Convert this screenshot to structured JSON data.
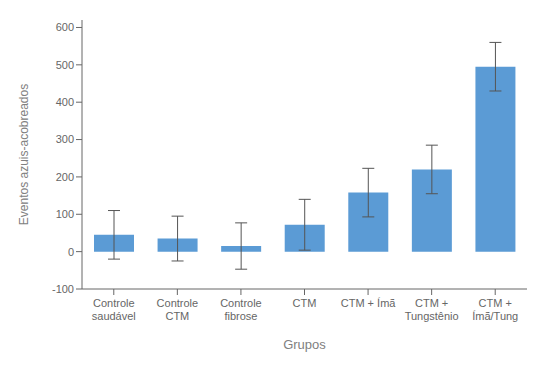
{
  "chart_data": {
    "type": "bar",
    "categories": [
      "Controle\nsaudável",
      "Controle\nCTM",
      "Controle\nfibrose",
      "CTM",
      "CTM + Ímã",
      "CTM +\nTungstênio",
      "CTM +\nÍmã/Tung"
    ],
    "values": [
      45,
      35,
      15,
      72,
      158,
      220,
      495
    ],
    "errors": [
      65,
      60,
      62,
      68,
      65,
      65,
      65
    ],
    "color": "#5b9bd5",
    "xlabel": "Grupos",
    "ylabel": "Eventos azuis-acobreados",
    "ylim": [
      -100,
      620
    ],
    "yticks": [
      -100,
      0,
      100,
      200,
      300,
      400,
      500,
      600
    ],
    "grid": false
  }
}
